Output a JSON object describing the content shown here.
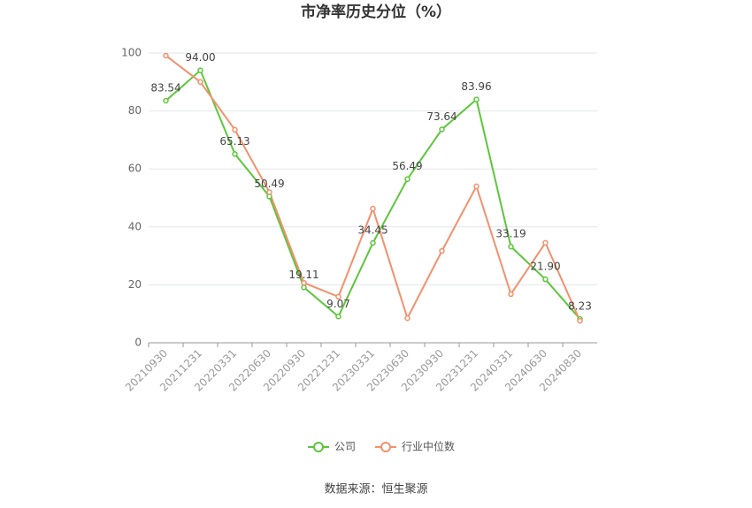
{
  "chart_data": {
    "type": "line",
    "title": "市净率历史分位（%）",
    "source": "数据来源：恒生聚源",
    "categories": [
      "20210930",
      "20211231",
      "20220331",
      "20220630",
      "20220930",
      "20221231",
      "20230331",
      "20230630",
      "20230930",
      "20231231",
      "20240331",
      "20240630",
      "20240830"
    ],
    "series": [
      {
        "name": "公司",
        "color": "#5cc73a",
        "values": [
          83.54,
          94.0,
          65.13,
          50.49,
          19.11,
          9.07,
          34.45,
          56.49,
          73.64,
          83.96,
          33.19,
          21.9,
          8.23
        ],
        "value_labels": [
          "83.54",
          "94.00",
          "65.13",
          "50.49",
          "19.11",
          "9.07",
          "34.45",
          "56.49",
          "73.64",
          "83.96",
          "33.19",
          "21.90",
          "8.23"
        ]
      },
      {
        "name": "行业中位数",
        "color": "#f4906c",
        "values": [
          99.1,
          90.0,
          73.5,
          52.0,
          20.7,
          15.9,
          46.3,
          8.5,
          31.7,
          54.0,
          16.8,
          34.5,
          7.6
        ]
      }
    ],
    "ylim": [
      0,
      100
    ],
    "yticks": [
      0,
      20,
      40,
      60,
      80,
      100
    ],
    "grid": true
  }
}
